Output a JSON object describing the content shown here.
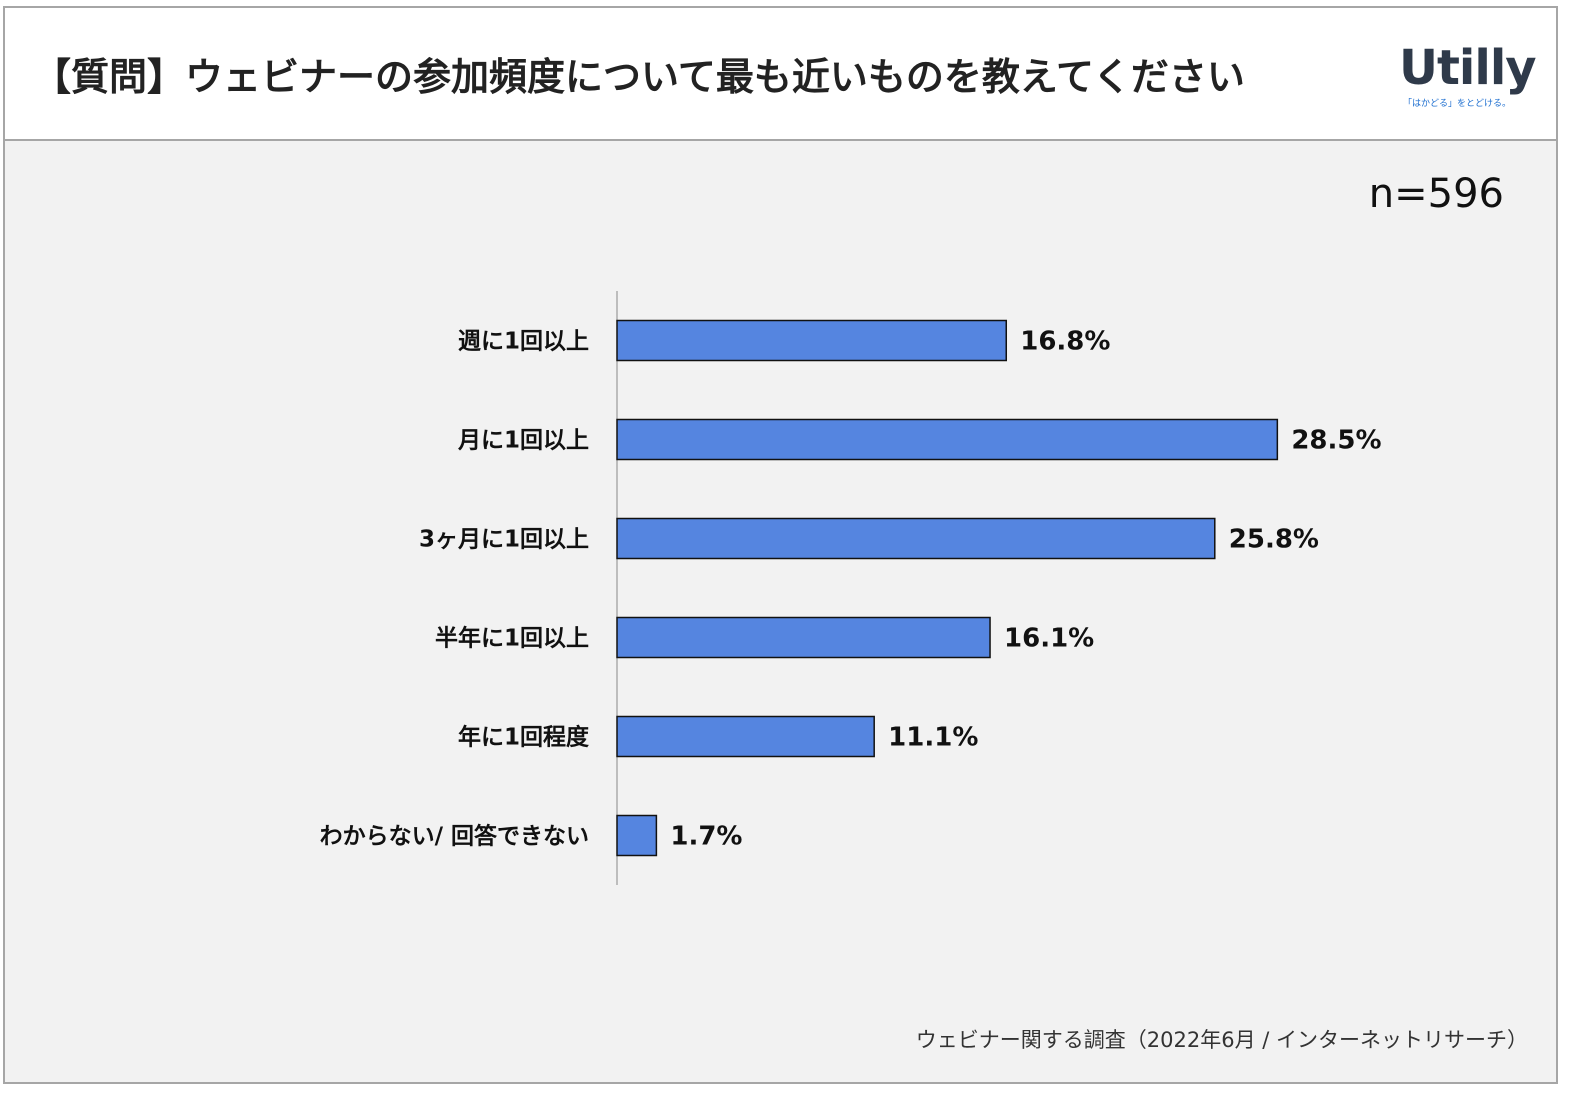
{
  "header": {
    "title": "【質問】ウェビナーの参加頻度について最も近いものを教えてください",
    "logo_text": "Utilly",
    "logo_tagline": "「はかどる」をとどける。"
  },
  "sample_size": "n=596",
  "source_note": "ウェビナー関する調査（2022年6月 / インターネットリサーチ）",
  "colors": {
    "bar_fill": "#5585e0",
    "bar_stroke": "#111111",
    "plot_background": "#f2f2f2"
  },
  "chart_data": {
    "type": "bar",
    "orientation": "horizontal",
    "title": "【質問】ウェビナーの参加頻度について最も近いものを教えてください",
    "xlabel": "",
    "ylabel": "",
    "unit": "%",
    "xlim": [
      0,
      30
    ],
    "grid": false,
    "categories": [
      "週に1回以上",
      "月に1回以上",
      "3ヶ月に1回以上",
      "半年に1回以上",
      "年に1回程度",
      "わからない/ 回答できない"
    ],
    "values": [
      16.8,
      28.5,
      25.8,
      16.1,
      11.1,
      1.7
    ],
    "value_labels": [
      "16.8%",
      "28.5%",
      "25.8%",
      "16.1%",
      "11.1%",
      "1.7%"
    ]
  }
}
